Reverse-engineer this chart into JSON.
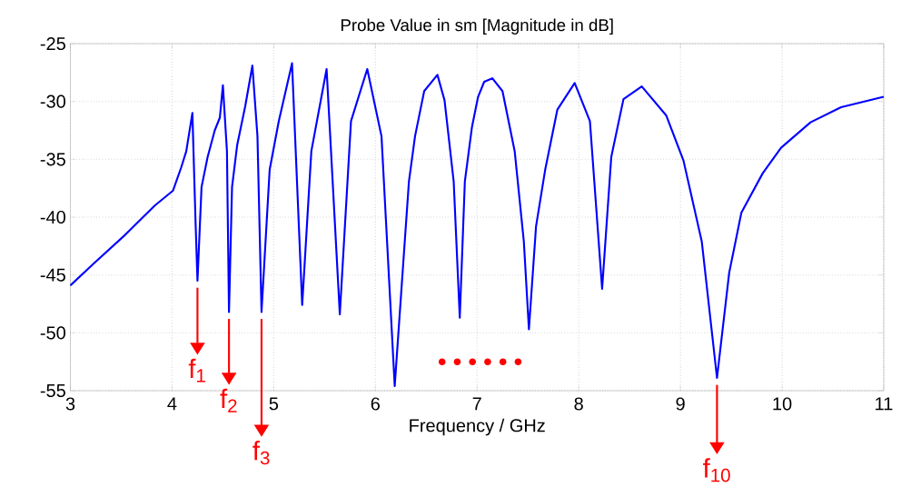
{
  "chart_data": {
    "type": "line",
    "title": "Probe Value in sm [Magnitude in dB]",
    "xlabel": "Frequency / GHz",
    "xlim": [
      3,
      11
    ],
    "ylim": [
      -55,
      -25
    ],
    "xticks": [
      3,
      4,
      5,
      6,
      7,
      8,
      9,
      10,
      11
    ],
    "yticks": [
      -55,
      -50,
      -45,
      -40,
      -35,
      -30,
      -25
    ],
    "grid": true,
    "marker": "none",
    "line_style": "solid",
    "series": [
      {
        "color": "#0000ff",
        "x": [
          3.0,
          3.23,
          3.53,
          3.83,
          4.01,
          4.09,
          4.14,
          4.2,
          4.23,
          4.25,
          4.29,
          4.35,
          4.42,
          4.47,
          4.5,
          4.54,
          4.56,
          4.59,
          4.64,
          4.72,
          4.79,
          4.84,
          4.88,
          4.96,
          5.05,
          5.18,
          5.28,
          5.37,
          5.52,
          5.65,
          5.76,
          5.92,
          6.06,
          6.19,
          6.33,
          6.39,
          6.48,
          6.61,
          6.68,
          6.77,
          6.83,
          6.88,
          6.95,
          7.01,
          7.07,
          7.15,
          7.25,
          7.37,
          7.46,
          7.51,
          7.58,
          7.67,
          7.79,
          7.96,
          8.11,
          8.23,
          8.32,
          8.44,
          8.62,
          8.86,
          9.03,
          9.21,
          9.36,
          9.48,
          9.6,
          9.81,
          9.99,
          10.28,
          10.58,
          11.0
        ],
        "values": [
          -45.9,
          -44.0,
          -41.6,
          -39.0,
          -37.7,
          -35.7,
          -34.3,
          -31.0,
          -40.1,
          -45.5,
          -37.4,
          -34.8,
          -32.5,
          -31.4,
          -28.6,
          -34.3,
          -48.2,
          -37.4,
          -33.8,
          -30.4,
          -26.9,
          -33.0,
          -48.2,
          -35.9,
          -31.7,
          -26.7,
          -47.6,
          -34.3,
          -27.2,
          -48.4,
          -31.7,
          -27.2,
          -33.0,
          -54.6,
          -36.9,
          -33.0,
          -29.1,
          -27.7,
          -29.9,
          -36.9,
          -48.7,
          -36.9,
          -32.2,
          -29.6,
          -28.3,
          -28.0,
          -29.1,
          -34.3,
          -42.1,
          -49.7,
          -40.8,
          -35.9,
          -30.7,
          -28.4,
          -31.7,
          -46.2,
          -34.8,
          -29.8,
          -28.7,
          -31.2,
          -35.1,
          -42.1,
          -53.9,
          -44.8,
          -39.6,
          -36.2,
          -34.0,
          -31.8,
          -30.5,
          -29.6
        ]
      }
    ],
    "annotations": [
      {
        "text": "f$_{1}$",
        "x": 4.25,
        "y": -45.5
      },
      {
        "text": "f$_{2}$",
        "x": 4.56,
        "y": -48.2
      },
      {
        "text": "f$_{3}$",
        "x": 4.88,
        "y": -48.2
      },
      {
        "text": "f$_{10}$",
        "x": 9.36,
        "y": -53.9
      },
      "• • • • • •"
    ]
  }
}
